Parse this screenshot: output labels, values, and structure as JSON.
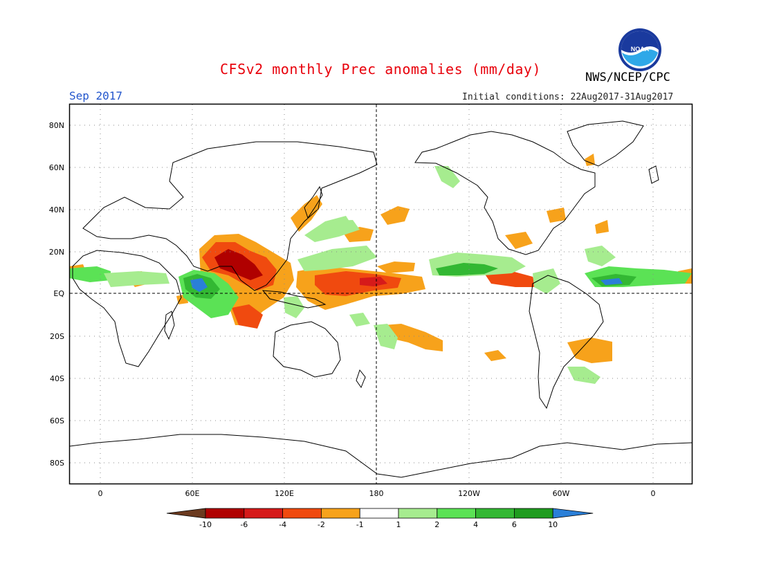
{
  "header": {
    "title": "CFSv2 monthly Prec anomalies (mm/day)",
    "agency": "NWS/NCEP/CPC",
    "month": "Sep 2017",
    "initial_conditions": "Initial conditions: 22Aug2017-31Aug2017"
  },
  "map": {
    "lat_labels": [
      "80N",
      "60N",
      "40N",
      "20N",
      "EQ",
      "20S",
      "40S",
      "60S",
      "80S"
    ],
    "lon_labels": [
      "0",
      "60E",
      "120E",
      "180",
      "120W",
      "60W",
      "0"
    ]
  },
  "colorbar": {
    "labels": [
      "-10",
      "-6",
      "-4",
      "-2",
      "-1",
      "1",
      "2",
      "4",
      "6",
      "10"
    ],
    "colors": [
      "#6b3a1f",
      "#b00000",
      "#d61a1a",
      "#f04a0f",
      "#f7a21b",
      "#ffffff",
      "#a6ec8f",
      "#5be255",
      "#33b833",
      "#1f9c1f",
      "#2a7fd8"
    ]
  },
  "colors": {
    "title": "#e8000b",
    "month": "#2255cc",
    "dry_strong": "#d61a1a",
    "dry": "#f04a0f",
    "dry_weak": "#f7a21b",
    "wet_weak": "#a6ec8f",
    "wet": "#5be255",
    "wet_strong": "#33b833",
    "wet_max": "#2a7fd8"
  },
  "logo": {
    "text": "NOAA"
  }
}
